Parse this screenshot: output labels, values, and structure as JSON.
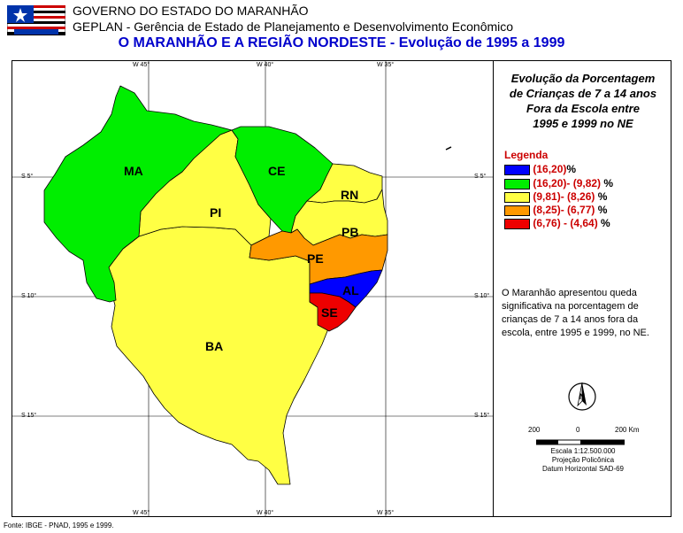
{
  "header": {
    "line1": "GOVERNO DO ESTADO DO MARANHÃO",
    "line2": "GEPLAN - Gerência de Estado de Planejamento e Desenvolvimento Econômico",
    "line3": "O MARANHÃO E A REGIÃO NORDESTE - Evolução de 1995 a 1999"
  },
  "coords": {
    "top": [
      "W 45°",
      "W 40°",
      "W 35°"
    ],
    "bottom": [
      "W 45°",
      "W 40°",
      "W 35°"
    ],
    "left": [
      "S 5°",
      "S 10°",
      "S 15°"
    ],
    "right": [
      "S 5°",
      "S 10°",
      "S 15°"
    ]
  },
  "states": [
    {
      "abbr": "MA",
      "class": "(16,20)- (9,82)",
      "color": "#00ee00"
    },
    {
      "abbr": "CE",
      "class": "(16,20)- (9,82)",
      "color": "#00ee00"
    },
    {
      "abbr": "PI",
      "class": "(9,81)- (8,26)",
      "color": "#ffff44"
    },
    {
      "abbr": "RN",
      "class": "(9,81)- (8,26)",
      "color": "#ffff44"
    },
    {
      "abbr": "PB",
      "class": "(9,81)- (8,26)",
      "color": "#ffff44"
    },
    {
      "abbr": "PE",
      "class": "(8,25)- (6,77)",
      "color": "#ff9900"
    },
    {
      "abbr": "AL",
      "class": "(16,20)",
      "color": "#0000ff"
    },
    {
      "abbr": "SE",
      "class": "(6,76) - (4,64)",
      "color": "#ee0000"
    },
    {
      "abbr": "BA",
      "class": "(9,81)- (8,26)",
      "color": "#ffff44"
    }
  ],
  "panel": {
    "title_lines": [
      "Evolução da Porcentagem",
      "de Crianças de 7 a 14 anos",
      "Fora da Escola entre",
      "1995 e 1999 no NE"
    ],
    "legend_title": "Legenda",
    "legend": [
      {
        "range": "(16,20)",
        "unit": "%",
        "color": "#0000ff"
      },
      {
        "range": "(16,20)- (9,82)",
        "unit": "%",
        "color": "#00ee00"
      },
      {
        "range": "(9,81)- (8,26)",
        "unit": "%",
        "color": "#ffff44"
      },
      {
        "range": "(8,25)- (6,77)",
        "unit": "%",
        "color": "#ff9900"
      },
      {
        "range": "(6,76) - (4,64)",
        "unit": "%",
        "color": "#ee0000"
      }
    ],
    "description": "O Maranhão apresentou queda significativa na porcentagem de crianças de 7 a 14 anos fora da escola, entre 1995 e 1999, no NE.",
    "compass_letter": "N",
    "scale": {
      "labels": [
        "200",
        "0",
        "200 Km"
      ],
      "line1": "Escala 1:12.500.000",
      "line2": "Projeção Policônica",
      "line3": "Datum Horizontal SAD-69"
    }
  },
  "source": "Fonte: IBGE - PNAD, 1995 e 1999."
}
